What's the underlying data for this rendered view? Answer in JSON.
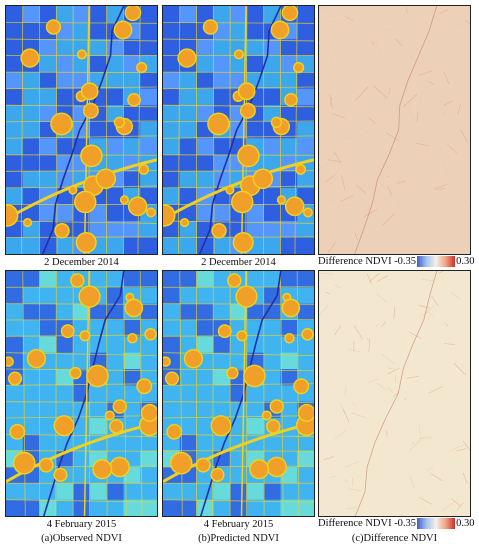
{
  "rows": [
    {
      "observed_date": "2 December 2014",
      "predicted_date": "2 December 2014",
      "legend": {
        "label": "Difference NDVI",
        "min": "-0.35",
        "max": "0.30"
      }
    },
    {
      "observed_date": "4 February 2015",
      "predicted_date": "4 February 2015",
      "legend": {
        "label": "Difference NDVI",
        "min": "-0.35",
        "max": "0.30"
      }
    }
  ],
  "subcaptions": {
    "a": "(a)Observed NDVI",
    "b": "(b)Predicted NDVI",
    "c": "(c)Difference NDVI"
  },
  "colors": {
    "ndvi_low": "#2f5fe0",
    "ndvi_mid": "#3fb4f0",
    "ndvi_high": "#f0d21e",
    "urban": "#f0a028",
    "diff_row1": "#ecd0b8",
    "diff_row2": "#f3e8cf"
  }
}
